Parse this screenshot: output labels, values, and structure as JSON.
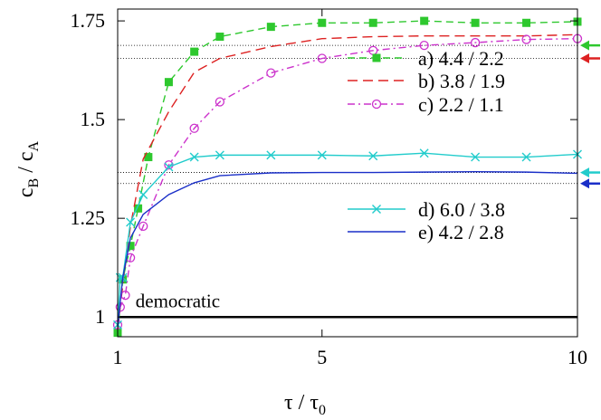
{
  "chart_data": {
    "type": "line",
    "title": "",
    "xlabel": "τ / τ",
    "xlabel_sub": "0",
    "ylabel": "c  / c",
    "ylabel_sub1": "B",
    "ylabel_sub2": "A",
    "xlim": [
      1,
      10
    ],
    "ylim": [
      0.95,
      1.78
    ],
    "xticks": [
      {
        "value": 1,
        "label": "1"
      },
      {
        "value": 5,
        "label": "5"
      },
      {
        "value": 10,
        "label": "10"
      }
    ],
    "yticks": [
      {
        "value": 1,
        "label": "1"
      },
      {
        "value": 1.25,
        "label": "1.25"
      },
      {
        "value": 1.5,
        "label": "1.5"
      },
      {
        "value": 1.75,
        "label": "1.75"
      }
    ],
    "legend_position": "right",
    "annotation": {
      "text": "democratic",
      "x": 1.35,
      "y": 1.02
    },
    "baseline": {
      "y": 1.0,
      "color": "#000000"
    },
    "reference_lines": [
      1.688,
      1.655,
      1.366,
      1.338
    ],
    "arrows": [
      {
        "y": 1.688,
        "color": "#2ec82e"
      },
      {
        "y": 1.655,
        "color": "#dd2222"
      },
      {
        "y": 1.366,
        "color": "#22cccc"
      },
      {
        "y": 1.338,
        "color": "#1a2fc8"
      }
    ],
    "series": [
      {
        "name": "a)  4.4 / 2.2",
        "color": "#2ec82e",
        "dash": "8,5",
        "marker": "square",
        "x": [
          1.0,
          1.1,
          1.25,
          1.4,
          1.6,
          2.0,
          2.5,
          3.0,
          4.0,
          5.0,
          6.0,
          7.0,
          8.0,
          9.0,
          10.0
        ],
        "y": [
          0.96,
          1.095,
          1.18,
          1.275,
          1.405,
          1.595,
          1.672,
          1.71,
          1.735,
          1.745,
          1.745,
          1.75,
          1.745,
          1.745,
          1.748
        ]
      },
      {
        "name": "b)  3.8 / 1.9",
        "color": "#dd2222",
        "dash": "11,6",
        "marker": "none",
        "x": [
          1.0,
          1.1,
          1.25,
          1.5,
          2.0,
          2.5,
          3.0,
          4.0,
          5.0,
          6.0,
          7.0,
          8.0,
          9.0,
          10.0
        ],
        "y": [
          0.97,
          1.08,
          1.23,
          1.4,
          1.52,
          1.62,
          1.655,
          1.685,
          1.705,
          1.71,
          1.712,
          1.712,
          1.712,
          1.715
        ]
      },
      {
        "name": "c)  2.2 / 1.1",
        "color": "#cc33cc",
        "dash": "8,4,2,4",
        "marker": "circle",
        "x": [
          1.0,
          1.05,
          1.15,
          1.25,
          1.5,
          2.0,
          2.5,
          3.0,
          4.0,
          5.0,
          6.0,
          7.0,
          8.0,
          9.0,
          10.0
        ],
        "y": [
          0.98,
          1.025,
          1.055,
          1.15,
          1.23,
          1.385,
          1.478,
          1.545,
          1.618,
          1.655,
          1.675,
          1.688,
          1.695,
          1.703,
          1.705
        ]
      },
      {
        "name": "d)  6.0 / 3.8",
        "color": "#22cccc",
        "dash": "",
        "marker": "cross",
        "x": [
          1.0,
          1.05,
          1.1,
          1.25,
          1.5,
          2.0,
          2.5,
          3.0,
          4.0,
          5.0,
          6.0,
          7.0,
          8.0,
          9.0,
          10.0
        ],
        "y": [
          0.98,
          1.1,
          1.1,
          1.24,
          1.31,
          1.38,
          1.405,
          1.41,
          1.41,
          1.41,
          1.408,
          1.415,
          1.405,
          1.405,
          1.412
        ]
      },
      {
        "name": "e)  4.2 / 2.8",
        "color": "#1a2fc8",
        "dash": "",
        "marker": "none",
        "x": [
          1.0,
          1.1,
          1.25,
          1.5,
          2.0,
          2.5,
          3.0,
          4.0,
          5.0,
          6.0,
          7.0,
          8.0,
          9.0,
          10.0
        ],
        "y": [
          0.975,
          1.1,
          1.2,
          1.26,
          1.31,
          1.34,
          1.358,
          1.365,
          1.366,
          1.366,
          1.367,
          1.368,
          1.367,
          1.364
        ]
      }
    ]
  }
}
